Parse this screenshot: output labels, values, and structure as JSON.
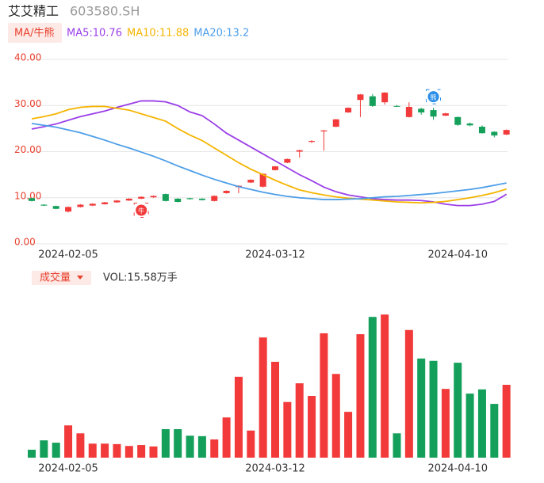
{
  "header": {
    "name": "艾艾精工",
    "code": "603580.SH"
  },
  "chart_data": [
    {
      "type": "candlestick",
      "legend_button": "MA/牛熊",
      "categories": [
        null,
        null,
        null,
        "2024-02-05",
        null,
        null,
        null,
        null,
        null,
        null,
        null,
        null,
        null,
        null,
        null,
        null,
        null,
        null,
        null,
        null,
        "2024-03-12",
        null,
        null,
        null,
        null,
        null,
        null,
        null,
        null,
        null,
        null,
        null,
        null,
        null,
        null,
        "2024-04-10",
        null,
        null,
        null,
        null
      ],
      "open": [
        9.9,
        8.5,
        8.2,
        7.0,
        8.0,
        8.3,
        8.6,
        9.0,
        9.4,
        9.8,
        10.1,
        10.8,
        9.8,
        9.9,
        9.8,
        9.3,
        11.0,
        12.3,
        13.3,
        12.4,
        16.0,
        17.6,
        20.0,
        22.1,
        24.4,
        25.4,
        28.5,
        31.2,
        32.0,
        30.7,
        29.9,
        27.5,
        29.3,
        29.0,
        27.8,
        27.5,
        26.1,
        25.4,
        24.3,
        23.7
      ],
      "high": [
        10.0,
        8.6,
        8.3,
        8.1,
        8.6,
        8.8,
        9.1,
        9.5,
        9.9,
        10.3,
        10.5,
        10.9,
        9.9,
        10.0,
        9.9,
        10.5,
        11.6,
        12.7,
        14.0,
        15.3,
        16.9,
        18.5,
        20.4,
        22.5,
        24.7,
        27.1,
        29.6,
        32.5,
        32.5,
        32.9,
        30.1,
        30.7,
        29.5,
        29.5,
        28.4,
        27.6,
        26.3,
        25.7,
        24.4,
        24.8
      ],
      "low": [
        9.2,
        8.2,
        7.5,
        6.8,
        7.9,
        8.2,
        8.5,
        8.9,
        9.3,
        9.7,
        10.0,
        9.2,
        9.0,
        9.6,
        9.4,
        9.2,
        10.9,
        11.0,
        13.2,
        12.2,
        15.9,
        17.5,
        18.7,
        21.9,
        20.2,
        25.3,
        28.4,
        27.5,
        29.7,
        30.2,
        29.7,
        27.4,
        28.0,
        26.9,
        27.7,
        25.6,
        25.5,
        23.9,
        23.1,
        23.6
      ],
      "close": [
        9.3,
        8.3,
        7.6,
        8.0,
        8.5,
        8.7,
        9.0,
        9.4,
        9.8,
        10.2,
        10.4,
        9.3,
        9.1,
        9.7,
        9.5,
        10.4,
        11.5,
        12.6,
        13.9,
        15.2,
        16.8,
        18.4,
        20.3,
        22.3,
        24.6,
        27.0,
        29.5,
        32.4,
        29.9,
        32.8,
        29.8,
        29.7,
        28.5,
        27.6,
        28.3,
        25.8,
        25.7,
        24.0,
        23.5,
        24.7
      ],
      "up_color": "#f23a3a",
      "down_color": "#14a05a",
      "series": [
        {
          "name": "MA5:10.76",
          "color": "#9b3ee8",
          "values": [
            24.9,
            25.4,
            26.0,
            26.8,
            27.6,
            28.2,
            28.8,
            29.6,
            30.3,
            31.0,
            31.0,
            30.8,
            30.0,
            28.6,
            27.8,
            26.0,
            24.0,
            22.5,
            21.0,
            19.5,
            18.0,
            16.5,
            15.0,
            13.7,
            12.3,
            11.3,
            10.6,
            10.2,
            9.8,
            9.6,
            9.5,
            9.5,
            9.4,
            9.1,
            8.6,
            8.3,
            8.3,
            8.6,
            9.2,
            10.76
          ]
        },
        {
          "name": "MA10:11.88",
          "color": "#f5b400",
          "values": [
            27.1,
            27.6,
            28.2,
            29.1,
            29.6,
            29.8,
            29.8,
            29.4,
            29.0,
            28.2,
            27.4,
            26.6,
            25.0,
            23.6,
            22.4,
            20.8,
            19.2,
            17.6,
            16.2,
            15.0,
            13.8,
            12.7,
            11.7,
            11.1,
            10.6,
            10.2,
            9.9,
            9.7,
            9.5,
            9.3,
            9.1,
            9.0,
            8.9,
            9.0,
            9.2,
            9.6,
            10.0,
            10.5,
            11.1,
            11.88
          ]
        },
        {
          "name": "MA20:13.2",
          "color": "#4e9ee8",
          "values": [
            26.1,
            25.7,
            25.3,
            24.7,
            24.1,
            23.3,
            22.5,
            21.6,
            20.8,
            19.9,
            19.0,
            18.0,
            16.9,
            15.9,
            14.9,
            14.0,
            13.2,
            12.4,
            11.8,
            11.2,
            10.7,
            10.3,
            10.0,
            9.8,
            9.6,
            9.6,
            9.7,
            9.8,
            10.0,
            10.2,
            10.3,
            10.5,
            10.7,
            10.9,
            11.2,
            11.5,
            11.8,
            12.2,
            12.7,
            13.2
          ]
        }
      ],
      "signals": [
        {
          "index": 9,
          "label": "牛",
          "color": "#f23a3a"
        },
        {
          "index": 33,
          "label": "熊",
          "color": "#2a8ee8"
        }
      ],
      "ylim": [
        0,
        40
      ],
      "yticks": [
        {
          "value": 0,
          "label": "0.00"
        },
        {
          "value": 10,
          "label": "10.00"
        },
        {
          "value": 20,
          "label": "20.00"
        },
        {
          "value": 30,
          "label": "30.00"
        },
        {
          "value": 40,
          "label": "40.00"
        }
      ],
      "grid": true
    },
    {
      "type": "bar",
      "title": "成交量",
      "legend": "VOL:15.58万手",
      "categories": [
        null,
        null,
        null,
        "2024-02-05",
        null,
        null,
        null,
        null,
        null,
        null,
        null,
        null,
        null,
        null,
        null,
        null,
        null,
        null,
        null,
        null,
        "2024-03-12",
        null,
        null,
        null,
        null,
        null,
        null,
        null,
        null,
        null,
        null,
        null,
        null,
        null,
        null,
        "2024-04-10",
        null,
        null,
        null,
        null
      ],
      "values": [
        1.7,
        3.7,
        3.2,
        6.9,
        5.2,
        3.0,
        3.0,
        2.9,
        2.5,
        2.7,
        2.4,
        6.1,
        6.1,
        4.7,
        4.6,
        3.9,
        8.6,
        17.3,
        5.8,
        25.7,
        20.5,
        11.9,
        15.9,
        13.2,
        26.6,
        17.9,
        9.8,
        26.4,
        30.1,
        30.6,
        5.2,
        27.3,
        21.2,
        20.7,
        14.7,
        20.3,
        13.7,
        14.6,
        11.5,
        15.58
      ],
      "ylim": [
        0,
        32
      ]
    }
  ]
}
